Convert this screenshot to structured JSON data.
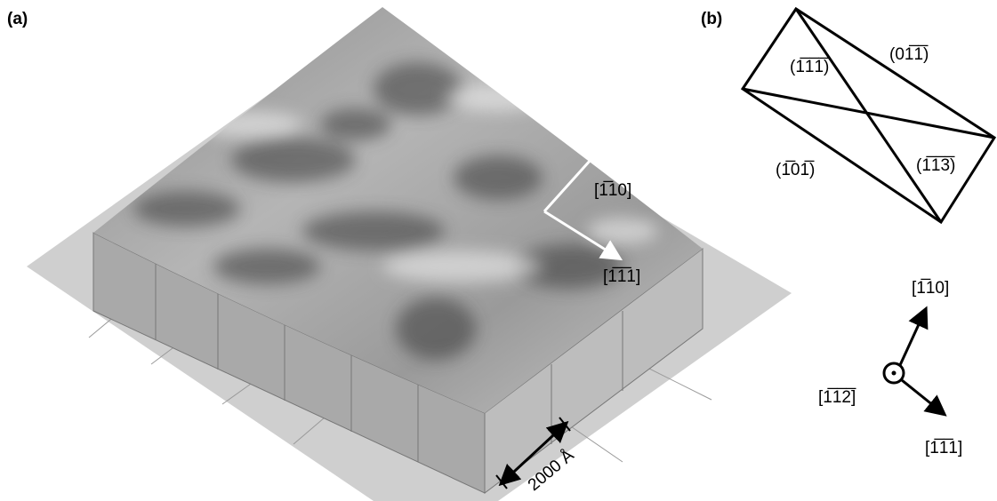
{
  "panel_a": {
    "label": "(a)",
    "scale_bar": "2000 Å",
    "directions": [
      "[1̅10]",
      "[1̅1̅1]"
    ]
  },
  "panel_b": {
    "label": "(b)",
    "facets": [
      "(1̅1̅1̅)",
      "(01̅1̅)",
      "(1̅01̅)",
      "(1̅1̅3̅)"
    ],
    "directions": [
      "[1̅10]",
      "[1̅1̅2̅]",
      "[1̅1̅1]"
    ]
  }
}
